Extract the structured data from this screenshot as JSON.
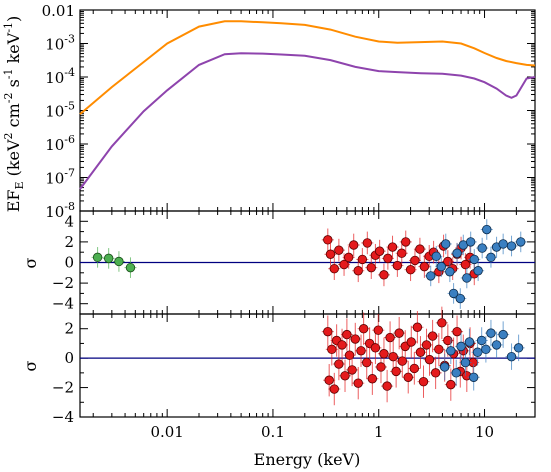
{
  "chart_data": [
    {
      "type": "line",
      "panel": "spectrum",
      "ylabel": "EF_E (keV² cm⁻² s⁻¹ keV⁻¹)",
      "ylabel_parts": {
        "a": "EF",
        "sub": "E",
        "b": " (keV",
        "s1": "2",
        "c": " cm",
        "s2": "-2",
        "d": " s",
        "s3": "-1",
        "e": " keV",
        "s4": "-1",
        "f": ")"
      },
      "yscale": "log",
      "xscale": "log",
      "xlim": [
        0.0015,
        30
      ],
      "ylim": [
        1e-08,
        0.01
      ],
      "yticks": [
        {
          "value": 0.01,
          "label": "0.01",
          "kind": "plain"
        },
        {
          "value": 0.001,
          "label": "10",
          "exp": "-3",
          "kind": "pow"
        },
        {
          "value": 0.0001,
          "label": "10",
          "exp": "-4",
          "kind": "pow"
        },
        {
          "value": 1e-05,
          "label": "10",
          "exp": "-5",
          "kind": "pow"
        },
        {
          "value": 1e-06,
          "label": "10",
          "exp": "-6",
          "kind": "pow"
        },
        {
          "value": 1e-07,
          "label": "10",
          "exp": "-7",
          "kind": "pow"
        },
        {
          "value": 1e-08,
          "label": "10",
          "exp": "-8",
          "kind": "pow"
        }
      ],
      "series": [
        {
          "color": "#ff8c00",
          "x": [
            0.0015,
            0.003,
            0.006,
            0.01,
            0.02,
            0.035,
            0.05,
            0.08,
            0.12,
            0.2,
            0.35,
            0.6,
            1.0,
            1.5,
            2.5,
            4.0,
            6.0,
            8.0,
            10.0,
            13.0,
            16.0,
            20.0,
            25.0,
            30.0
          ],
          "y": [
            7.8e-06,
            5e-05,
            0.00028,
            0.001,
            0.0032,
            0.0046,
            0.0046,
            0.0043,
            0.004,
            0.0036,
            0.0026,
            0.0016,
            0.00115,
            0.00105,
            0.0011,
            0.00115,
            0.001,
            0.00072,
            0.00052,
            0.00037,
            0.0003,
            0.00026,
            0.00023,
            0.00022
          ]
        },
        {
          "color": "#8e44ad",
          "x": [
            0.0015,
            0.003,
            0.006,
            0.01,
            0.02,
            0.035,
            0.05,
            0.08,
            0.12,
            0.2,
            0.35,
            0.6,
            1.0,
            1.5,
            2.5,
            4.0,
            6.0,
            8.0,
            10.0,
            13.0,
            16.0,
            18.0,
            20.0,
            25.0,
            30.0
          ],
          "y": [
            4.5e-08,
            8.5e-07,
            9.5e-06,
            4e-05,
            0.00023,
            0.00048,
            0.00051,
            0.0005,
            0.00047,
            0.00043,
            0.00032,
            0.0002,
            0.00015,
            0.00014,
            0.00013,
            0.000125,
            0.00011,
            9e-05,
            7e-05,
            4.5e-05,
            2.8e-05,
            2.4e-05,
            2.8e-05,
            9e-05,
            0.0001
          ]
        }
      ]
    },
    {
      "type": "scatter",
      "panel": "residuals-1",
      "ylabel": "σ",
      "xscale": "log",
      "xlim": [
        0.0015,
        30
      ],
      "ylim": [
        -5,
        5
      ],
      "yticks": [
        4,
        2,
        0,
        -2,
        -4
      ],
      "zero_line_color": "#000080",
      "series": [
        {
          "color": "#4caf50",
          "edge": "#1a4d1a",
          "x": [
            0.0022,
            0.0028,
            0.0035,
            0.0045
          ],
          "y": [
            0.5,
            0.4,
            0.1,
            -0.5
          ],
          "err": [
            1.0,
            1.0,
            1.0,
            1.0
          ]
        },
        {
          "color": "#e41a1c",
          "edge": "#5a0000",
          "x": [
            0.33,
            0.35,
            0.38,
            0.42,
            0.47,
            0.52,
            0.58,
            0.64,
            0.7,
            0.78,
            0.85,
            0.93,
            1.02,
            1.12,
            1.22,
            1.35,
            1.5,
            1.65,
            1.8,
            2.0,
            2.2,
            2.45,
            2.7,
            3.0,
            3.3,
            3.7,
            4.1,
            4.5,
            5.0,
            5.5,
            6.0,
            6.6,
            7.3,
            8.0
          ],
          "y": [
            2.2,
            0.8,
            -0.6,
            1.2,
            -0.2,
            0.5,
            1.7,
            -0.8,
            0.3,
            1.9,
            -0.5,
            0.7,
            1.1,
            -1.2,
            0.4,
            1.5,
            -0.3,
            0.9,
            2.0,
            -0.7,
            0.2,
            1.3,
            -0.4,
            0.6,
            1.0,
            -0.9,
            1.6,
            0.1,
            -0.6,
            0.8,
            1.4,
            -0.2,
            0.5,
            -1.1
          ],
          "err": [
            1.1,
            1.1,
            1.1,
            1.1,
            1.1,
            1.1,
            1.1,
            1.1,
            1.1,
            1.1,
            1.1,
            1.1,
            1.1,
            1.1,
            1.1,
            1.1,
            1.1,
            1.1,
            1.1,
            1.1,
            1.1,
            1.1,
            1.1,
            1.1,
            1.1,
            1.1,
            1.1,
            1.1,
            1.1,
            1.1,
            1.1,
            1.1,
            1.1,
            1.1
          ]
        },
        {
          "color": "#3a7fc1",
          "edge": "#0b2a4a",
          "x": [
            3.1,
            3.5,
            3.9,
            4.3,
            4.7,
            5.1,
            5.5,
            5.9,
            6.3,
            6.8,
            7.4,
            8.0,
            8.7,
            9.5,
            10.5,
            11.5,
            13.0,
            15.0,
            18.0,
            22.0
          ],
          "y": [
            -1.3,
            0.6,
            -0.4,
            1.8,
            -0.9,
            -3.0,
            0.9,
            -3.5,
            1.7,
            -1.5,
            2.0,
            0.3,
            -0.8,
            1.4,
            3.2,
            0.5,
            1.5,
            1.8,
            1.6,
            2.0
          ],
          "err": [
            1.0,
            1.0,
            1.0,
            1.0,
            1.0,
            1.0,
            1.0,
            1.0,
            1.0,
            1.0,
            1.0,
            1.0,
            1.0,
            1.0,
            1.0,
            1.0,
            1.0,
            1.0,
            1.0,
            1.0
          ]
        }
      ]
    },
    {
      "type": "scatter",
      "panel": "residuals-2",
      "ylabel": "σ",
      "xlabel": "Energy (keV)",
      "xscale": "log",
      "xlim": [
        0.0015,
        30
      ],
      "ylim": [
        -4,
        3
      ],
      "yticks": [
        2,
        0,
        -2,
        -4
      ],
      "xticks": [
        {
          "value": 0.01,
          "label": "0.01"
        },
        {
          "value": 0.1,
          "label": "0.1"
        },
        {
          "value": 1,
          "label": "1"
        },
        {
          "value": 10,
          "label": "10"
        }
      ],
      "zero_line_color": "#000080",
      "series": [
        {
          "color": "#e41a1c",
          "edge": "#5a0000",
          "x": [
            0.33,
            0.34,
            0.36,
            0.38,
            0.4,
            0.42,
            0.45,
            0.48,
            0.5,
            0.53,
            0.56,
            0.6,
            0.64,
            0.68,
            0.72,
            0.77,
            0.82,
            0.87,
            0.93,
            0.99,
            1.05,
            1.12,
            1.2,
            1.28,
            1.37,
            1.46,
            1.56,
            1.67,
            1.78,
            1.9,
            2.03,
            2.17,
            2.32,
            2.48,
            2.65,
            2.83,
            3.02,
            3.23,
            3.45,
            3.7,
            3.95,
            4.2,
            4.5,
            4.8,
            5.1,
            5.5,
            5.9,
            6.3,
            6.8,
            7.3,
            7.8
          ],
          "y": [
            1.8,
            -1.5,
            0.6,
            -2.1,
            1.2,
            -0.4,
            0.9,
            -1.2,
            1.6,
            0.2,
            -0.8,
            1.3,
            -1.7,
            0.5,
            2.0,
            -0.3,
            1.0,
            -1.4,
            0.7,
            1.9,
            -0.6,
            0.3,
            -1.9,
            1.4,
            0.1,
            -0.9,
            1.7,
            -0.2,
            0.8,
            -1.3,
            1.1,
            -0.7,
            2.1,
            0.4,
            -1.6,
            0.9,
            -0.1,
            1.5,
            -1.0,
            0.6,
            2.4,
            -0.5,
            1.2,
            -1.8,
            0.3,
            1.8,
            -0.9,
            0.5,
            -1.2,
            1.0,
            -0.3
          ],
          "err": [
            1.1,
            1.1,
            1.1,
            1.1,
            1.1,
            1.1,
            1.1,
            1.1,
            1.1,
            1.1,
            1.1,
            1.1,
            1.1,
            1.1,
            1.1,
            1.1,
            1.1,
            1.1,
            1.1,
            1.1,
            1.1,
            1.1,
            1.1,
            1.1,
            1.1,
            1.1,
            1.1,
            1.1,
            1.1,
            1.1,
            1.1,
            1.1,
            1.1,
            1.1,
            1.1,
            1.1,
            1.1,
            1.1,
            1.1,
            1.1,
            1.1,
            1.1,
            1.1,
            1.1,
            1.1,
            1.1,
            1.1,
            1.1,
            1.1,
            1.1,
            1.1
          ]
        },
        {
          "color": "#3a7fc1",
          "edge": "#0b2a4a",
          "x": [
            4.2,
            4.8,
            5.4,
            6.0,
            6.6,
            7.2,
            7.9,
            8.6,
            9.4,
            10.3,
            11.5,
            13.0,
            15.0,
            18.0,
            21.0
          ],
          "y": [
            -0.6,
            0.5,
            -1.0,
            0.8,
            -0.3,
            1.1,
            -1.3,
            0.4,
            1.2,
            0.6,
            1.7,
            0.9,
            1.6,
            0.1,
            0.7
          ],
          "err": [
            0.9,
            0.9,
            0.9,
            0.9,
            0.9,
            0.9,
            0.9,
            0.9,
            0.9,
            0.9,
            0.9,
            0.9,
            0.9,
            0.9,
            0.9
          ]
        }
      ]
    }
  ]
}
